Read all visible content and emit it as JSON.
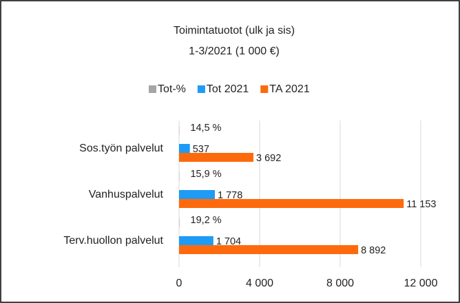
{
  "chart_data": {
    "type": "bar",
    "orientation": "horizontal",
    "title": "Toimintatuotot (ulk ja sis)",
    "subtitle": "1-3/2021 (1 000 €)",
    "categories": [
      "Sos.työn palvelut",
      "Vanhuspalvelut",
      "Terv.huollon palvelut"
    ],
    "series": [
      {
        "name": "Tot-%",
        "color": "#a5a5a5",
        "values": [
          14.5,
          15.9,
          19.2
        ],
        "value_labels": [
          "14,5 %",
          "15,9 %",
          "19,2 %"
        ]
      },
      {
        "name": "Tot 2021",
        "color": "#1e9bf5",
        "values": [
          537,
          1778,
          1704
        ],
        "value_labels": [
          "537",
          "1 778",
          "1 704"
        ]
      },
      {
        "name": "TA 2021",
        "color": "#fd6a0d",
        "values": [
          3692,
          11153,
          8892
        ],
        "value_labels": [
          "3 692",
          "11 153",
          "8 892"
        ]
      }
    ],
    "xlim": [
      0,
      12000
    ],
    "xticks": [
      0,
      {
        "value": 4000,
        "label": "4 000"
      },
      {
        "value": 8000,
        "label": "8 000"
      },
      {
        "value": 12000,
        "label": "12 000"
      }
    ],
    "grid": true,
    "legend": "top"
  }
}
